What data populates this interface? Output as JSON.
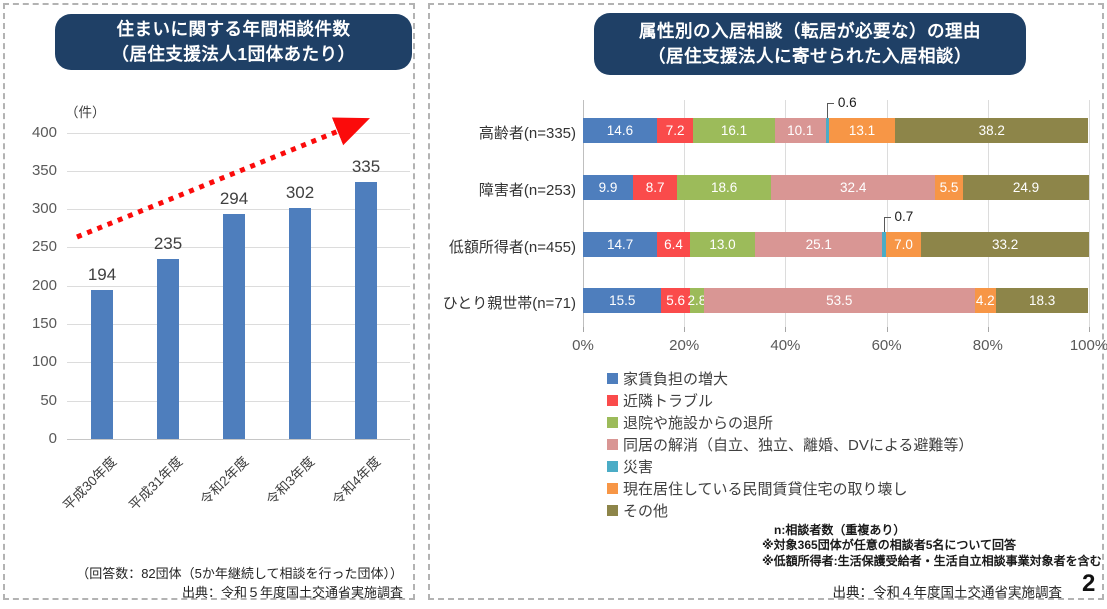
{
  "page": {
    "number": "2"
  },
  "left_panel": {
    "title_line1": "住まいに関する年間相談件数",
    "title_line2": "（居住支援法人1団体あたり）",
    "unit_label": "（件）",
    "response_note": "（回答数：82団体（5か年継続して相談を行った団体））",
    "source": "出典：令和５年度国土交通省実施調査"
  },
  "right_panel": {
    "title_line1": "属性別の入居相談（転居が必要な）の理由",
    "title_line2": "（居住支援法人に寄せられた入居相談）",
    "notes": [
      "n:相談者数（重複あり）",
      "※対象365団体が任意の相談者5名について回答",
      "※低額所得者:生活保護受給者・生活自立相談事業対象者を含む"
    ],
    "source": "出典：令和４年度国土交通省実施調査"
  },
  "chart_data": [
    {
      "type": "bar",
      "title": "住まいに関する年間相談件数（居住支援法人1団体あたり）",
      "unit": "（件）",
      "categories": [
        "平成30年度",
        "平成31年度",
        "令和2年度",
        "令和3年度",
        "令和4年度"
      ],
      "values": [
        194,
        235,
        294,
        302,
        335
      ],
      "ylim": [
        0,
        400
      ],
      "ytick_step": 50,
      "bar_color": "#4e7ebd",
      "grid": true,
      "trend_arrow": {
        "style": "dotted",
        "direction": "up-right",
        "color": "#fb0b0b"
      }
    },
    {
      "type": "stacked_bar_horizontal",
      "title": "属性別の入居相談（転居が必要な）の理由（居住支援法人に寄せられた入居相談）",
      "categories": [
        "高齢者(n=335)",
        "障害者(n=253)",
        "低額所得者(n=455)",
        "ひとり親世帯(n=71)"
      ],
      "series": [
        {
          "name": "家賃負担の増大",
          "color": "#4e7ebd",
          "values": [
            14.6,
            9.9,
            14.7,
            15.5
          ]
        },
        {
          "name": "近隣トラブル",
          "color": "#fa4b4b",
          "values": [
            7.2,
            8.7,
            6.4,
            5.6
          ]
        },
        {
          "name": "退院や施設からの退所",
          "color": "#9cbb5a",
          "values": [
            16.1,
            18.6,
            13.0,
            2.8
          ]
        },
        {
          "name": "同居の解消（自立、独立、離婚、DVによる避難等）",
          "color": "#d99694",
          "values": [
            10.1,
            32.4,
            25.1,
            53.5
          ]
        },
        {
          "name": "災害",
          "color": "#4bacc6",
          "values": [
            0.6,
            0,
            0.7,
            0
          ]
        },
        {
          "name": "現在居住している民間賃貸住宅の取り壊し",
          "color": "#f79646",
          "values": [
            13.1,
            5.5,
            7.0,
            4.2
          ]
        },
        {
          "name": "その他",
          "color": "#8d8549",
          "values": [
            38.2,
            24.9,
            33.2,
            18.3
          ]
        }
      ],
      "xlim": [
        0,
        100
      ],
      "xticks": [
        "0%",
        "20%",
        "40%",
        "60%",
        "80%",
        "100%"
      ],
      "legend_position": "bottom-left",
      "grid": true,
      "callouts": [
        {
          "category_index": 0,
          "series_index": 4,
          "label": "0.6"
        },
        {
          "category_index": 2,
          "series_index": 4,
          "label": "0.7"
        }
      ]
    }
  ]
}
